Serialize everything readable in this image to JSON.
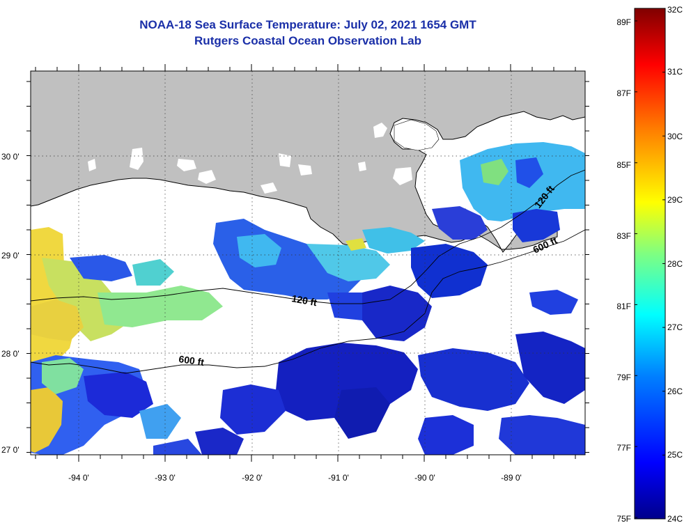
{
  "title": {
    "line1": "NOAA-18 Sea Surface Temperature:  July 02, 2021 1654 GMT",
    "line2": "Rutgers Coastal Ocean Observation Lab"
  },
  "map": {
    "lat_labels": [
      "30 0'",
      "29 0'",
      "28 0'",
      "27 0'"
    ],
    "lon_labels": [
      "-94 0'",
      "-93 0'",
      "-92 0'",
      "-91 0'",
      "-90 0'",
      "-89 0'"
    ],
    "contour_labels": [
      "120 ft",
      "600 ft",
      "120 ft",
      "600 ft"
    ],
    "land_color": "#c0c0c0",
    "cloud_color": "#ffffff"
  },
  "colorbar": {
    "celsius_labels": [
      "32C",
      "31C",
      "30C",
      "29C",
      "28C",
      "27C",
      "26C",
      "25C",
      "24C"
    ],
    "fahrenheit_labels": [
      "89F",
      "87F",
      "85F",
      "83F",
      "81F",
      "79F",
      "77F",
      "75F"
    ],
    "range_c": [
      24,
      32
    ],
    "colors": [
      "#00008b",
      "#0000ff",
      "#0080ff",
      "#00ffff",
      "#80ff80",
      "#ffff00",
      "#ff8000",
      "#ff0000",
      "#800000"
    ]
  }
}
